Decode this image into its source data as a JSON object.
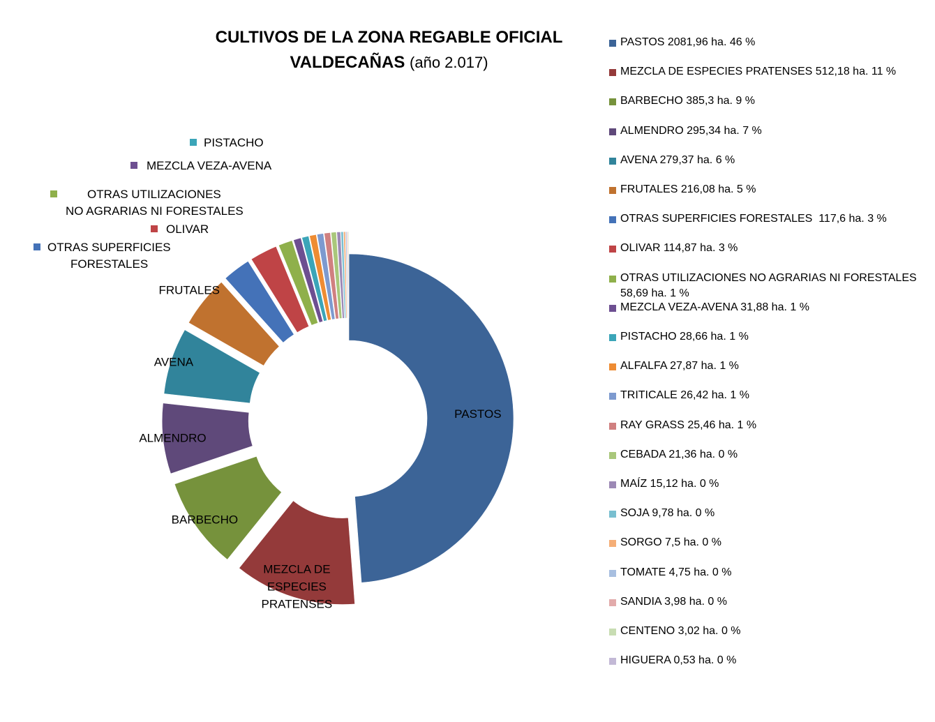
{
  "chart_data": {
    "type": "pie",
    "title_line1": "CULTIVOS DE LA ZONA REGABLE OFICIAL",
    "title_line2": "VALDECAÑAS",
    "title_suffix": "(año 2.017)",
    "slices": [
      {
        "label": "PASTOS",
        "value": 2081.96,
        "legend": "PASTOS 2081,96 ha. 46 %",
        "color": "#3C6497",
        "slice_label": "PASTOS"
      },
      {
        "label": "MEZCLA DE ESPECIES PRATENSES",
        "value": 512.18,
        "legend": "MEZCLA DE ESPECIES PRATENSES 512,18 ha. 11 %",
        "color": "#943A3A",
        "slice_label": "MEZCLA DE\nESPECIES\nPRATENSES"
      },
      {
        "label": "BARBECHO",
        "value": 385.3,
        "legend": "BARBECHO 385,3 ha. 9 %",
        "color": "#76923C",
        "slice_label": "BARBECHO"
      },
      {
        "label": "ALMENDRO",
        "value": 295.34,
        "legend": "ALMENDRO 295,34 ha. 7 %",
        "color": "#5F497A",
        "slice_label": "ALMENDRO"
      },
      {
        "label": "AVENA",
        "value": 279.37,
        "legend": "AVENA 279,37 ha. 6 %",
        "color": "#31849B",
        "slice_label": "AVENA"
      },
      {
        "label": "FRUTALES",
        "value": 216.08,
        "legend": "FRUTALES 216,08 ha. 5 %",
        "color": "#C0722F",
        "slice_label": "FRUTALES"
      },
      {
        "label": "OTRAS SUPERFICIES FORESTALES",
        "value": 117.6,
        "legend": "OTRAS SUPERFICIES FORESTALES  117,6 ha. 3 %",
        "color": "#4472B8"
      },
      {
        "label": "OLIVAR",
        "value": 114.87,
        "legend": "OLIVAR 114,87 ha. 3 %",
        "color": "#BF4446"
      },
      {
        "label": "OTRAS UTILIZACIONES NO AGRARIAS NI FORESTALES",
        "value": 58.69,
        "legend": "OTRAS UTILIZACIONES NO AGRARIAS NI FORESTALES 58,69 ha. 1 %",
        "color": "#8FB04B"
      },
      {
        "label": "MEZCLA VEZA-AVENA",
        "value": 31.88,
        "legend": "MEZCLA VEZA-AVENA 31,88 ha. 1 %",
        "color": "#6D4F91"
      },
      {
        "label": "PISTACHO",
        "value": 28.66,
        "legend": "PISTACHO 28,66 ha. 1 %",
        "color": "#3BA5B8"
      },
      {
        "label": "ALFALFA",
        "value": 27.87,
        "legend": "ALFALFA 27,87 ha. 1 %",
        "color": "#EE8C33"
      },
      {
        "label": "TRITICALE",
        "value": 26.42,
        "legend": "TRITICALE 26,42 ha. 1 %",
        "color": "#7D9ACF"
      },
      {
        "label": "RAY GRASS",
        "value": 25.46,
        "legend": "RAY GRASS 25,46 ha. 1 %",
        "color": "#D08080"
      },
      {
        "label": "CEBADA",
        "value": 21.36,
        "legend": "CEBADA 21,36 ha. 0 %",
        "color": "#A9C77B"
      },
      {
        "label": "MAÍZ",
        "value": 15.12,
        "legend": "MAÍZ 15,12 ha. 0 %",
        "color": "#9C89B5"
      },
      {
        "label": "SOJA",
        "value": 9.78,
        "legend": "SOJA 9,78 ha. 0 %",
        "color": "#79BFD0"
      },
      {
        "label": "SORGO",
        "value": 7.5,
        "legend": "SORGO 7,5 ha. 0 %",
        "color": "#F5AE77"
      },
      {
        "label": "TOMATE",
        "value": 4.75,
        "legend": "TOMATE 4,75 ha. 0 %",
        "color": "#A8BFE0"
      },
      {
        "label": "SANDIA",
        "value": 3.98,
        "legend": "SANDIA 3,98 ha. 0 %",
        "color": "#E2ABAB"
      },
      {
        "label": "CENTENO",
        "value": 3.02,
        "legend": "CENTENO 3,02 ha. 0 %",
        "color": "#C8DDB3"
      },
      {
        "label": "HIGUERA",
        "value": 0.53,
        "legend": "HIGUERA 0,53 ha. 0 %",
        "color": "#C3B9D6"
      }
    ],
    "callouts": [
      {
        "text": "PISTACHO",
        "color": "#3BA5B8"
      },
      {
        "text": "MEZCLA VEZA-AVENA",
        "color": "#6D4F91"
      },
      {
        "text": "OTRAS UTILIZACIONES\nNO AGRARIAS NI FORESTALES",
        "color": "#8FB04B"
      },
      {
        "text": "OLIVAR",
        "color": "#BF4446"
      },
      {
        "text": "OTRAS SUPERFICIES\nFORESTALES",
        "color": "#4472B8"
      }
    ],
    "legend_position": "right"
  }
}
